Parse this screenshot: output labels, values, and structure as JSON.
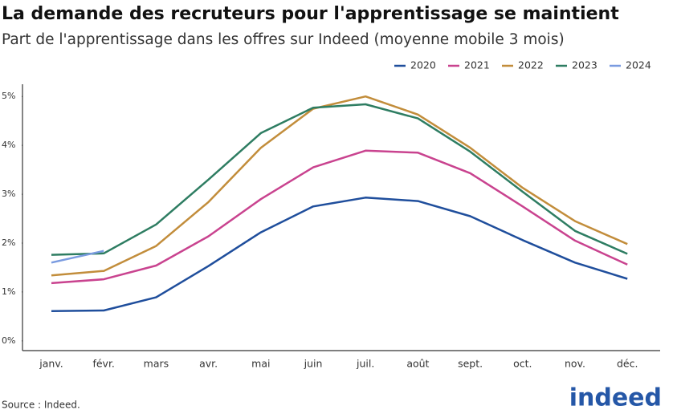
{
  "chart_data": {
    "type": "line",
    "title": "La demande des recruteurs pour l'apprentissage se maintient",
    "subtitle": "Part de l'apprentissage dans les offres sur Indeed (moyenne mobile 3 mois)",
    "source": "Source : Indeed.",
    "logo": "indeed",
    "categories": [
      "janv.",
      "févr.",
      "mars",
      "avr.",
      "mai",
      "juin",
      "juil.",
      "août",
      "sept.",
      "oct.",
      "nov.",
      "déc."
    ],
    "series": [
      {
        "name": "2020",
        "color": "#1f4e9c",
        "values": [
          0.61,
          0.62,
          0.89,
          1.53,
          2.22,
          2.75,
          2.93,
          2.86,
          2.55,
          2.06,
          1.6,
          1.27
        ]
      },
      {
        "name": "2021",
        "color": "#c9438f",
        "values": [
          1.18,
          1.26,
          1.54,
          2.14,
          2.9,
          3.55,
          3.89,
          3.85,
          3.43,
          2.75,
          2.05,
          1.56
        ]
      },
      {
        "name": "2022",
        "color": "#c28d3b",
        "values": [
          1.34,
          1.43,
          1.94,
          2.84,
          3.95,
          4.75,
          5.0,
          4.63,
          3.95,
          3.13,
          2.45,
          1.98
        ]
      },
      {
        "name": "2023",
        "color": "#2e7d62",
        "values": [
          1.76,
          1.79,
          2.38,
          3.3,
          4.25,
          4.77,
          4.84,
          4.55,
          3.87,
          3.05,
          2.25,
          1.78
        ]
      },
      {
        "name": "2024",
        "color": "#7a9be0",
        "values": [
          1.6,
          1.84,
          null,
          null,
          null,
          null,
          null,
          null,
          null,
          null,
          null,
          null
        ]
      }
    ],
    "ylim": [
      -0.2,
      5.25
    ],
    "yticks": [
      {
        "value": 0,
        "label": "0%"
      },
      {
        "value": 1,
        "label": "1%"
      },
      {
        "value": 2,
        "label": "2%"
      },
      {
        "value": 3,
        "label": "3%"
      },
      {
        "value": 4,
        "label": "4%"
      },
      {
        "value": 5,
        "label": "5%"
      }
    ],
    "grid": false,
    "legend": "top-right"
  }
}
